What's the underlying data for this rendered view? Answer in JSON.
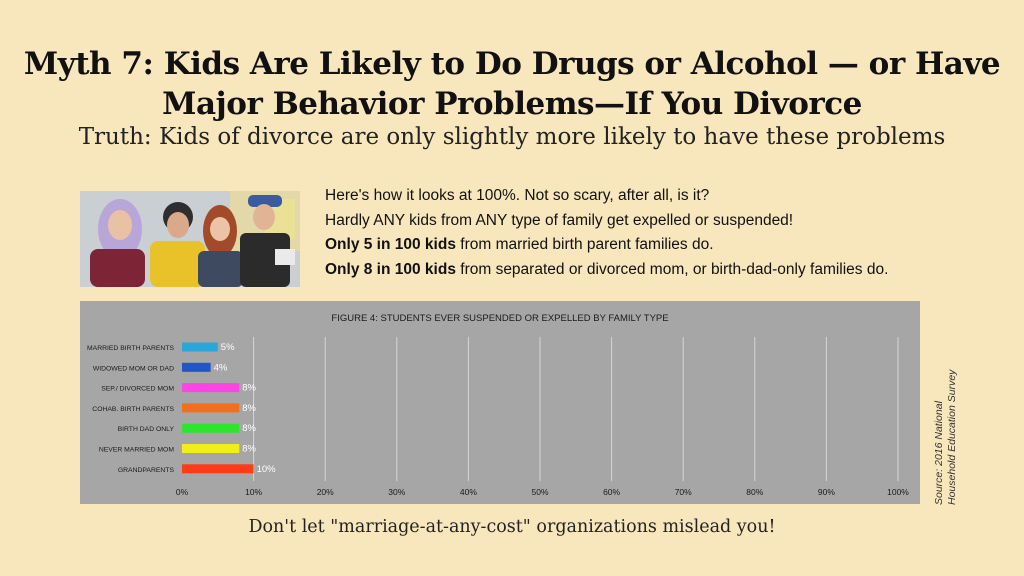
{
  "header": {
    "title_line1": "Myth 7: Kids Are Likely to  Do Drugs or Alcohol — or Have",
    "title_line2": "Major Behavior Problems—If You Divorce",
    "subtitle": "Truth: Kids of divorce are only slightly more likely to have these problems"
  },
  "facts": {
    "line1": "Here's how it looks at 100%. Not so scary, after all, is it?",
    "line2": "Hardly ANY kids from ANY type of family get expelled or suspended!",
    "line3_bold": "Only 5 in 100 kids",
    "line3_rest": " from married birth parent families do.",
    "line4_bold": "Only 8 in 100 kids",
    "line4_rest": " from separated or divorced mom, or birth-dad-only families do."
  },
  "source": {
    "line1": "Source: 2016 National",
    "line2": "Household Education Survey"
  },
  "footer": "Don't let \"marriage-at-any-cost\" organizations mislead you!",
  "chart_data": {
    "type": "bar",
    "orientation": "horizontal",
    "title": "FIGURE 4: STUDENTS EVER SUSPENDED OR EXPELLED BY FAMILY TYPE",
    "categories": [
      "MARRIED BIRTH PARENTS",
      "WIDOWED MOM OR DAD",
      "SEP./ DIVORCED MOM",
      "COHAB. BIRTH PARENTS",
      "BIRTH DAD ONLY",
      "NEVER MARRIED MOM",
      "GRANDPARENTS"
    ],
    "values": [
      5,
      4,
      8,
      8,
      8,
      8,
      10
    ],
    "value_labels": [
      "5%",
      "4%",
      "8%",
      "8%",
      "8%",
      "8%",
      "10%"
    ],
    "bar_colors": [
      "#2aa7d8",
      "#1f56c9",
      "#ff44e6",
      "#f2701c",
      "#2ee52e",
      "#f2ee1a",
      "#ff3b18"
    ],
    "xticks": [
      "0%",
      "10%",
      "20%",
      "30%",
      "40%",
      "50%",
      "60%",
      "70%",
      "80%",
      "90%",
      "100%"
    ],
    "xlim": [
      0,
      100
    ],
    "grid": "vertical",
    "legend": "none",
    "colors": {
      "background": "#a6a6a6",
      "grid": "#d6d6d6",
      "label_text": "#ffffff"
    }
  }
}
